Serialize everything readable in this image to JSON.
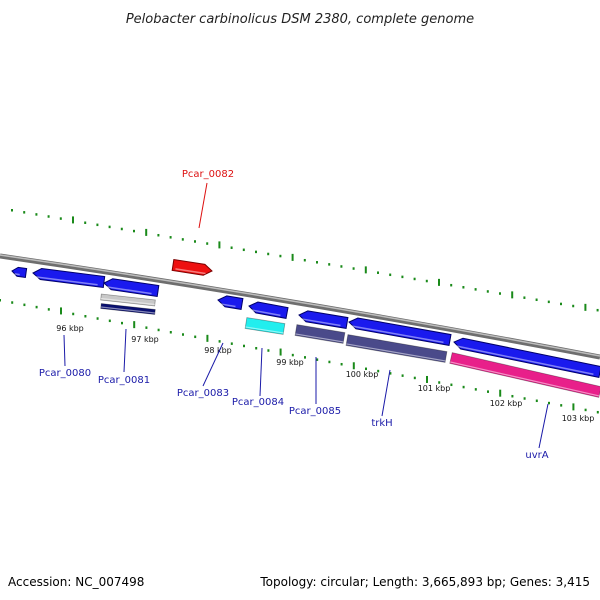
{
  "title": "Pelobacter carbinolicus DSM 2380, complete genome",
  "footer": {
    "accession": "Accession: NC_007498",
    "summary": "Topology: circular; Length: 3,665,893 bp; Genes: 3,415"
  },
  "colors": {
    "backbone": "#8a8a8a",
    "dots": "#1a8a1a",
    "forward_gene": "#1a1aee",
    "reverse_gene": "#1a1aee",
    "label_default": "#1a1aa8",
    "label_highlight": "#dd1111"
  },
  "scale_ticks": [
    {
      "label": "96 kbp"
    },
    {
      "label": "97 kbp"
    },
    {
      "label": "98 kbp"
    },
    {
      "label": "99 kbp"
    },
    {
      "label": "100 kbp"
    },
    {
      "label": "101 kbp"
    },
    {
      "label": "102 kbp"
    },
    {
      "label": "103 kbp"
    }
  ],
  "genes": [
    {
      "name": "Pcar_0080",
      "color": "#1a1aee"
    },
    {
      "name": "Pcar_0081",
      "color": "#1a1aee"
    },
    {
      "name": "Pcar_0082",
      "color": "#ee1111"
    },
    {
      "name": "Pcar_0083",
      "color": "#1a1aee"
    },
    {
      "name": "Pcar_0084",
      "color": "#1a1aee"
    },
    {
      "name": "Pcar_0085",
      "color": "#1a1aee"
    },
    {
      "name": "trkH",
      "color": "#1a1aee"
    },
    {
      "name": "uvrA",
      "color": "#1a1aee"
    }
  ]
}
